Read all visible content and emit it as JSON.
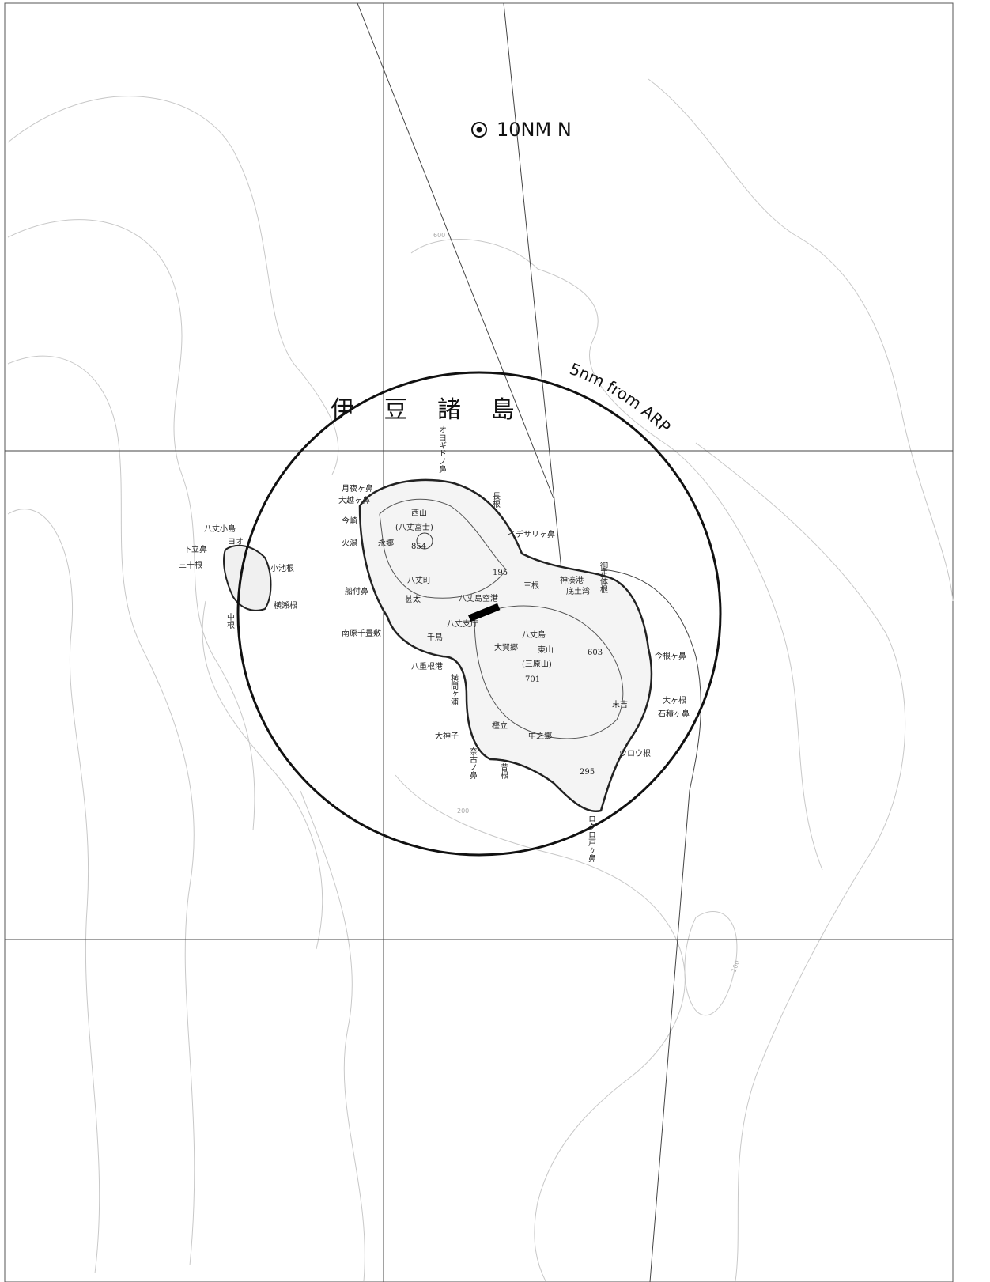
{
  "north_marker": "10NM N",
  "ring_label": "5nm from ARP",
  "region_label": "伊 豆 諸 島",
  "places": [
    "オヨギドノ鼻",
    "月夜ヶ鼻",
    "大越ヶ鼻",
    "今崎",
    "火潟",
    "永郷",
    "西山",
    "(八丈富士)",
    "854",
    "長根",
    "イデサリヶ鼻",
    "八丈町",
    "195",
    "三根",
    "神湊港",
    "底土湾",
    "御正体根",
    "船付鼻",
    "八丈島空港",
    "大賀郷",
    "千鳥",
    "八丈支庁",
    "南原千畳敷",
    "八丈島",
    "東山",
    "(三原山)",
    "603",
    "701",
    "今根ヶ鼻",
    "八重根港",
    "横間ヶ浦",
    "末吉",
    "大ヶ根",
    "石積ヶ鼻",
    "樫立",
    "中之郷",
    "大神子",
    "ウロウ根",
    "奈古ノ鼻",
    "昔根",
    "295",
    "八丈小島",
    "下立鼻",
    "三十根",
    "小池根",
    "横瀬根",
    "中根",
    "ヨオ",
    "ロクロ戸ヶ鼻",
    "甚太"
  ],
  "contour_labels": [
    "600",
    "100",
    "200"
  ]
}
